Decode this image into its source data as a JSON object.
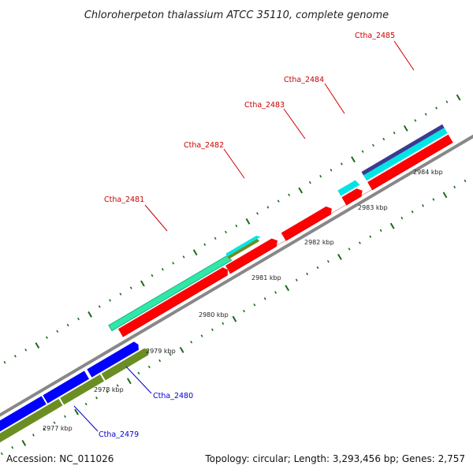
{
  "title": "Chloroherpeton thalassium ATCC 35110, complete genome",
  "footer": {
    "accession": "Accession: NC_011026",
    "summary": "Topology: circular; Length: 3,293,456 bp; Genes: 2,757"
  },
  "scale_labels": [
    "2977 kbp",
    "2978 kbp",
    "2979 kbp",
    "2980 kbp",
    "2981 kbp",
    "2982 kbp",
    "2983 kbp",
    "2984 kbp"
  ],
  "gene_labels": [
    {
      "name": "Ctha_2479",
      "color": "#0000cc"
    },
    {
      "name": "Ctha_2480",
      "color": "#0000cc"
    },
    {
      "name": "Ctha_2481",
      "color": "#cc0000"
    },
    {
      "name": "Ctha_2482",
      "color": "#cc0000"
    },
    {
      "name": "Ctha_2483",
      "color": "#cc0000"
    },
    {
      "name": "Ctha_2484",
      "color": "#cc0000"
    },
    {
      "name": "Ctha_2485",
      "color": "#cc0000"
    }
  ],
  "colors": {
    "backbone": "#888888",
    "tick": "#1a6b1a",
    "gene_forward": "#ff0000",
    "gene_reverse": "#0000ff",
    "feature_green": "#6b8e23",
    "feature_seagreen": "#2ee8a8",
    "feature_cyan": "#00e5e5",
    "feature_navy": "#3a3a90"
  }
}
